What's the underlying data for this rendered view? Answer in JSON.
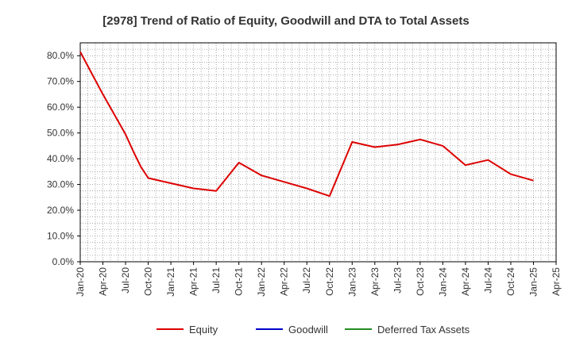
{
  "chart_data": {
    "type": "line",
    "title": "[2978]  Trend of Ratio of Equity, Goodwill and DTA to Total Assets",
    "xlabel": "",
    "ylabel": "",
    "ylim": [
      0,
      85
    ],
    "y_ticks": [
      0,
      10,
      20,
      30,
      40,
      50,
      60,
      70,
      80
    ],
    "y_tick_labels": [
      "0.0%",
      "10.0%",
      "20.0%",
      "30.0%",
      "40.0%",
      "50.0%",
      "60.0%",
      "70.0%",
      "80.0%"
    ],
    "x_ticks": [
      "Jan-20",
      "Apr-20",
      "Jul-20",
      "Oct-20",
      "Jan-21",
      "Apr-21",
      "Jul-21",
      "Oct-21",
      "Jan-22",
      "Apr-22",
      "Jul-22",
      "Oct-22",
      "Jan-23",
      "Apr-23",
      "Jul-23",
      "Oct-23",
      "Jan-24",
      "Apr-24",
      "Jul-24",
      "Oct-24",
      "Jan-25",
      "Apr-25"
    ],
    "grid": true,
    "legend_position": "bottom",
    "series": [
      {
        "name": "Equity",
        "color": "#dd0000",
        "x": [
          "Jan-20",
          "Apr-20",
          "Jul-20",
          "Aug-20",
          "Sep-20",
          "Oct-20",
          "Jan-21",
          "Apr-21",
          "Jul-21",
          "Oct-21",
          "Jan-22",
          "Apr-22",
          "Jul-22",
          "Oct-22",
          "Jan-23",
          "Apr-23",
          "Jul-23",
          "Oct-23",
          "Jan-24",
          "Apr-24",
          "Jul-24",
          "Oct-24",
          "Jan-25"
        ],
        "values": [
          81.5,
          65,
          49.5,
          43,
          37,
          32.5,
          30.5,
          28.5,
          27.5,
          38.5,
          33.5,
          31,
          28.5,
          25.5,
          46.5,
          44.5,
          45.5,
          47.5,
          45,
          37.5,
          39.5,
          34,
          31.5
        ]
      },
      {
        "name": "Goodwill",
        "color": "#0000cc",
        "x": [],
        "values": []
      },
      {
        "name": "Deferred Tax Assets",
        "color": "#228b22",
        "x": [],
        "values": []
      }
    ]
  }
}
